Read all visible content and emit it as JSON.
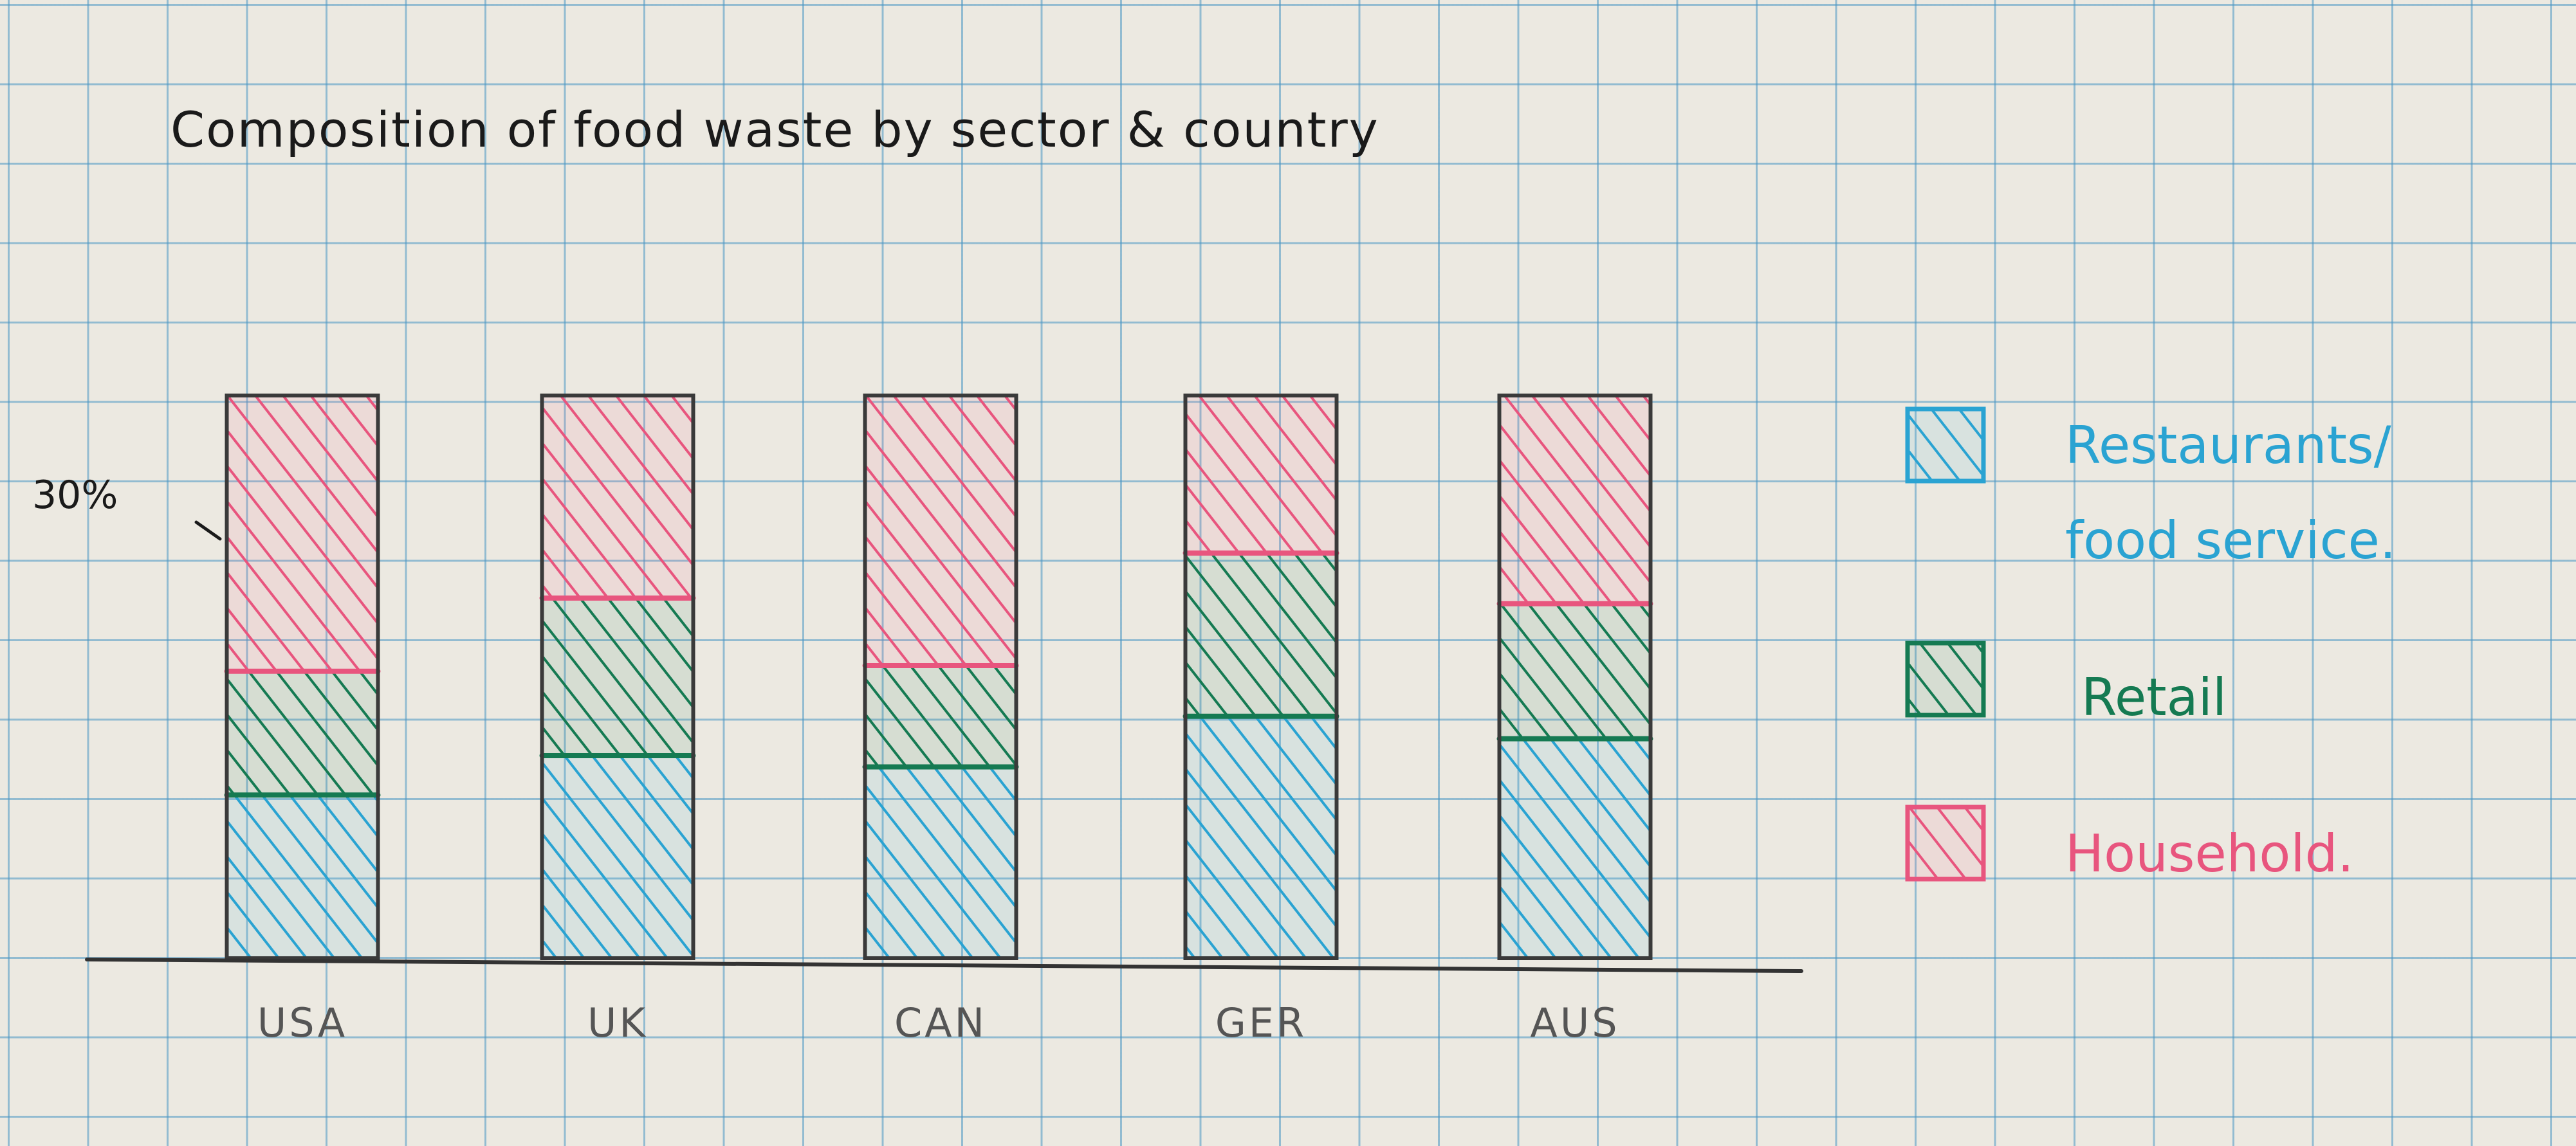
{
  "chart_data": {
    "type": "bar",
    "stacked": true,
    "title": "Composition of food waste by sector & country",
    "categories": [
      "USA",
      "UK",
      "CAN",
      "GER",
      "AUS"
    ],
    "y_marker_label": "30%",
    "y_marker_value": 30,
    "ylim": [
      0,
      100
    ],
    "grid": true,
    "legend_position": "right",
    "series": [
      {
        "name": "Restaurants/ food service.",
        "color": "#2aa3d2",
        "values": [
          29,
          36,
          34,
          43,
          39
        ]
      },
      {
        "name": "Retail",
        "color": "#157a52",
        "values": [
          22,
          28,
          18,
          29,
          24
        ]
      },
      {
        "name": "Household.",
        "color": "#e8557e",
        "values": [
          49,
          36,
          48,
          28,
          37
        ]
      }
    ]
  }
}
